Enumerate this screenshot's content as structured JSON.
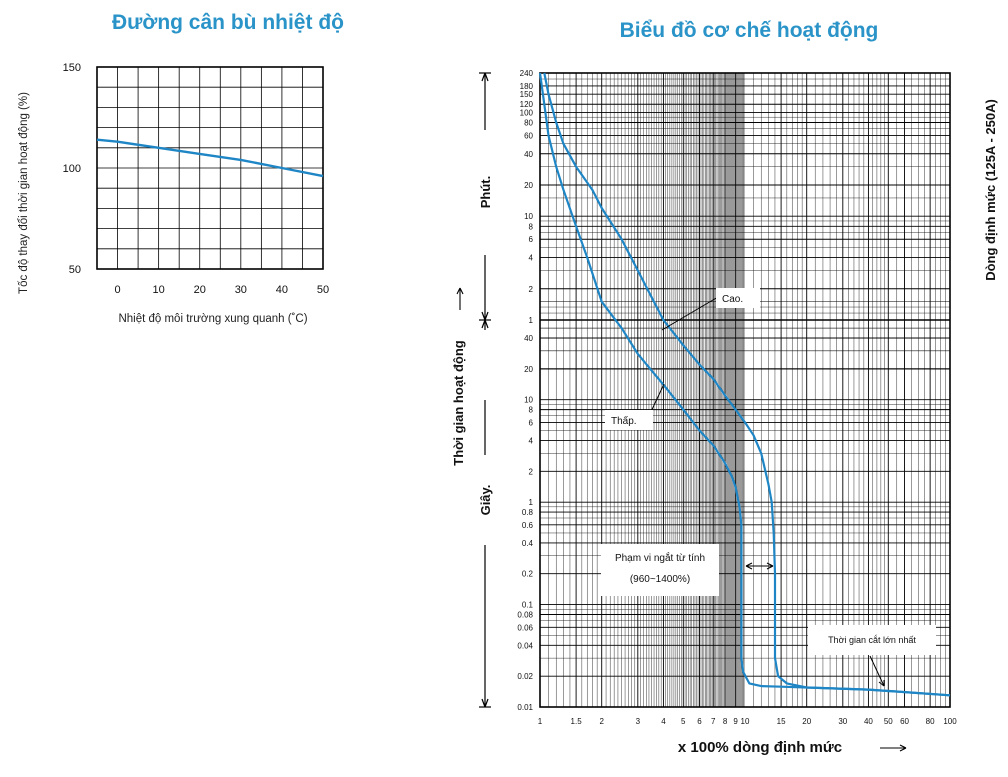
{
  "chart_data": [
    {
      "type": "line",
      "title": "Đường cân bù nhiệt độ",
      "xlabel": "Nhiệt độ môi trường xung quanh (˚C)",
      "ylabel": "Tốc độ thay đổi thời gian hoạt động (%)",
      "xlim": [
        -5,
        50
      ],
      "ylim": [
        50,
        150
      ],
      "x_ticks": [
        "0",
        "10",
        "20",
        "30",
        "40",
        "50"
      ],
      "y_ticks": [
        "50",
        "100",
        "150"
      ],
      "grid": true,
      "color": "#1f86c6",
      "series": [
        {
          "x": [
            -5,
            0,
            10,
            20,
            30,
            40,
            50
          ],
          "y": [
            114,
            113,
            110,
            107,
            104,
            100,
            96
          ]
        }
      ]
    },
    {
      "type": "line",
      "title": "Biểu đồ cơ chế hoạt động",
      "xlabel": "x 100% dòng định mức",
      "xlabel_arrow": "→",
      "ylabel": "Thời gian hoạt động",
      "ylabel_arrow": "→",
      "y_unit_minutes": "Phút.",
      "y_unit_seconds": "Giây.",
      "side_label": "Dòng định mức (125A - 250A)",
      "x_scale": "log",
      "y_scale": "log",
      "xlim": [
        1,
        100
      ],
      "ylim_seconds": [
        0.01,
        14400
      ],
      "x_ticks": [
        "1",
        "1.5",
        "2",
        "3",
        "4",
        "5",
        "6",
        "7",
        "8",
        "9",
        "10",
        "15",
        "20",
        "30",
        "40",
        "50",
        "60",
        "80",
        "100"
      ],
      "y_ticks_minutes": [
        "240",
        "180",
        "150",
        "120",
        "100",
        "80",
        "60",
        "40",
        "20",
        "10",
        "8",
        "6",
        "4",
        "2",
        "1"
      ],
      "y_ticks_seconds": [
        "40",
        "20",
        "10",
        "8",
        "6",
        "4",
        "2",
        "1",
        "0.8",
        "0.6",
        "0.4",
        "0.2",
        "0.1",
        "0.08",
        "0.06",
        "0.04",
        "0.02",
        "0.01"
      ],
      "grid": true,
      "color": "#1f86c6",
      "series": [
        {
          "name": "Cao.",
          "x": [
            1.05,
            1.1,
            1.2,
            1.3,
            1.5,
            1.8,
            2.0,
            2.5,
            3.0,
            4.0,
            5.0,
            6.0,
            7.0,
            8.0,
            9.0,
            10.0,
            11.0,
            12.0,
            13.0,
            13.5,
            13.8,
            14.0,
            14.0,
            14.0,
            14.0,
            14.5,
            16.0,
            20.0,
            40.0,
            100.0
          ],
          "y": [
            14400,
            9000,
            4800,
            3000,
            1800,
            1080,
            720,
            360,
            180,
            60,
            34,
            22,
            16,
            11,
            8,
            6,
            4.5,
            3,
            1.5,
            1,
            0.5,
            0.2,
            0.1,
            0.05,
            0.03,
            0.02,
            0.017,
            0.0155,
            0.0148,
            0.013
          ]
        },
        {
          "name": "Thấp.",
          "x": [
            1.0,
            1.05,
            1.1,
            1.2,
            1.3,
            1.5,
            1.7,
            2.0,
            2.5,
            3.0,
            4.0,
            5.0,
            6.0,
            7.0,
            8.0,
            8.6,
            9.0,
            9.4,
            9.6,
            9.6,
            9.6,
            9.6,
            9.6,
            9.8,
            10.5,
            12.0,
            15.0,
            20.0,
            40.0,
            100.0
          ],
          "y": [
            14400,
            7200,
            3600,
            1800,
            1080,
            480,
            240,
            90,
            50,
            28,
            14,
            8,
            5,
            3.6,
            2.4,
            1.8,
            1.4,
            0.9,
            0.6,
            0.3,
            0.1,
            0.05,
            0.03,
            0.022,
            0.017,
            0.016,
            0.0158,
            0.0155,
            0.0148,
            0.013
          ]
        }
      ],
      "annotations": {
        "cao": "Cao.",
        "thap": "Thấp.",
        "magnetic_range_1": "Phạm vi ngắt từ tính",
        "magnetic_range_2": "(960~1400%)",
        "max_break": "Thời gian cắt lớn nhất"
      }
    }
  ]
}
